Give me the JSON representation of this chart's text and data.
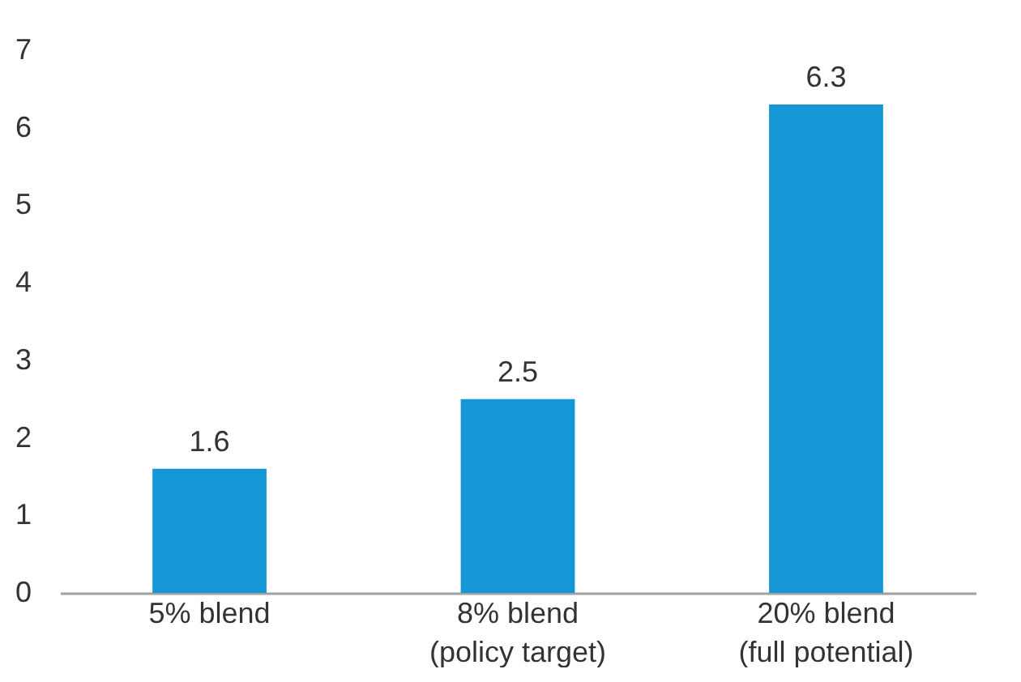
{
  "chart_data": {
    "type": "bar",
    "categories": [
      "5% blend",
      "8% blend\n(policy target)",
      "20% blend\n(full potential)"
    ],
    "values": [
      1.6,
      2.5,
      6.3
    ],
    "color": "#1497d4",
    "ylim": [
      0,
      7
    ],
    "yticks": [
      0,
      1,
      2,
      3,
      4,
      5,
      6,
      7
    ],
    "data_labels": true,
    "grid": false
  }
}
